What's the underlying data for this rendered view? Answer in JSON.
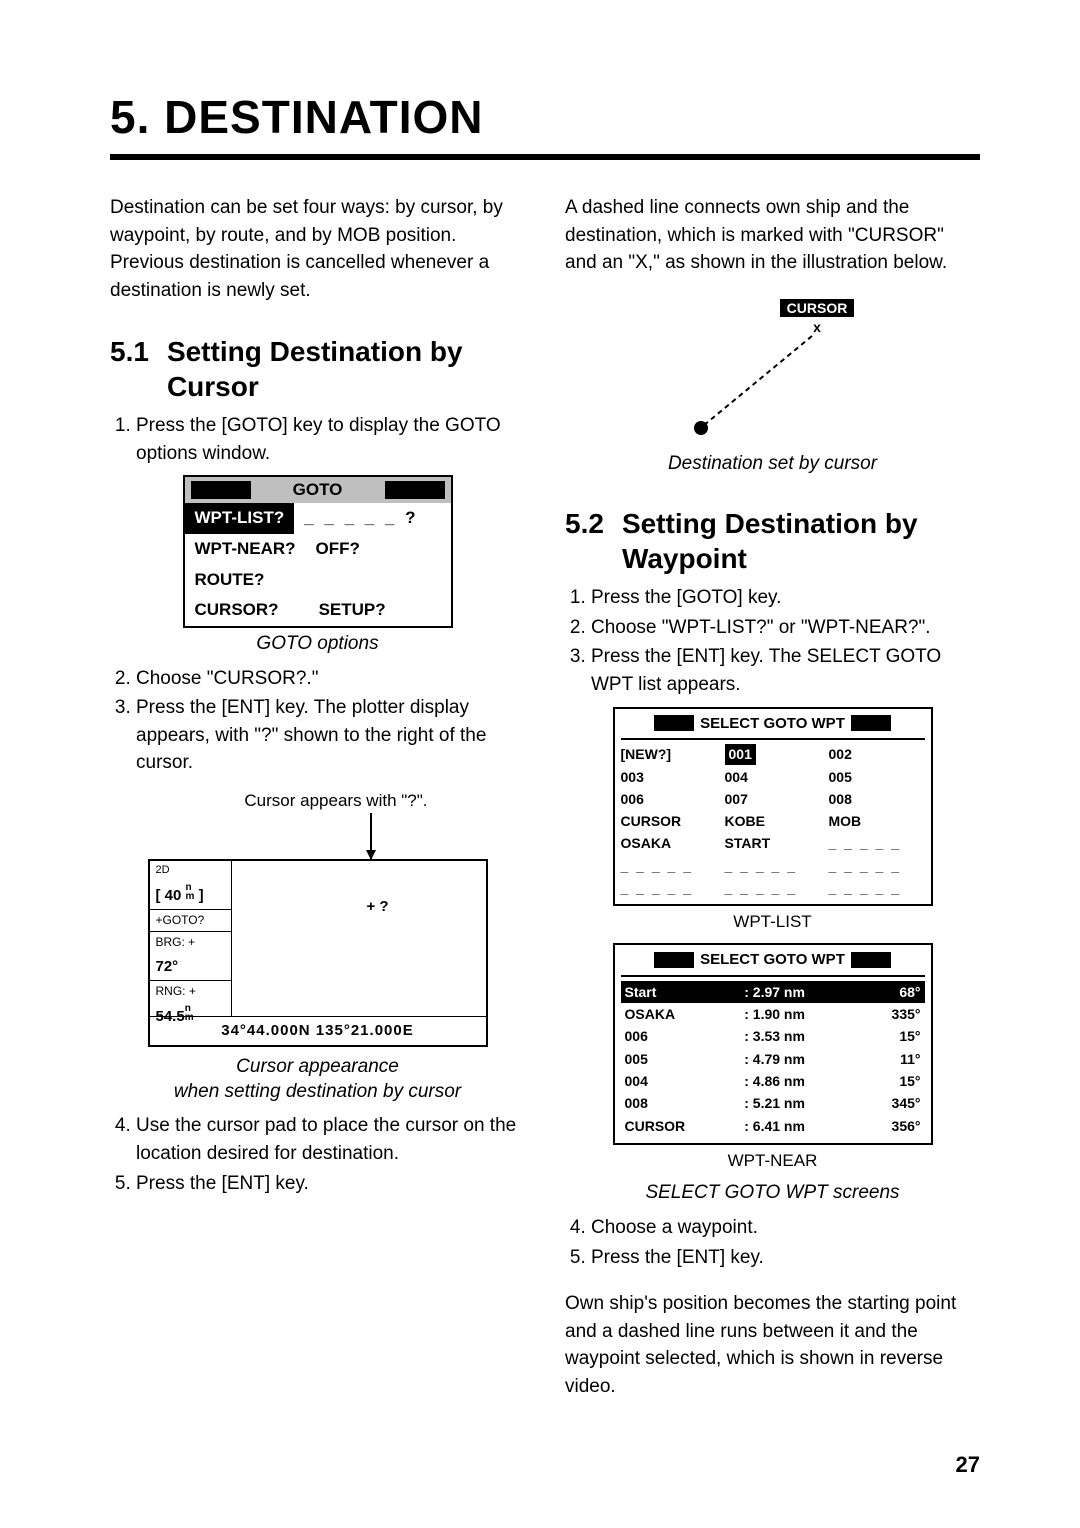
{
  "chapter": {
    "number": "5.",
    "title": "DESTINATION",
    "full": "5. DESTINATION"
  },
  "page_number": "27",
  "intro": "Destination can be set four ways: by cursor, by waypoint, by route, and by MOB position. Previous destination is cancelled whenever a destination is newly set.",
  "sec51": {
    "num": "5.1",
    "title": "Setting Destination by Cursor",
    "steps_a": [
      "Press the [GOTO] key to display the GOTO options window."
    ],
    "goto_panel": {
      "title": "GOTO",
      "rows": [
        [
          "WPT-LIST?",
          "_ _ _ _ _ ?"
        ],
        [
          "WPT-NEAR?",
          "OFF?"
        ],
        [
          "ROUTE?",
          ""
        ],
        [
          "CURSOR?",
          "SETUP?"
        ]
      ],
      "caption": "GOTO options"
    },
    "steps_b": [
      "Choose \"CURSOR?.\"",
      "Press the [ENT] key. The plotter display appears, with \"?\" shown to the right of the cursor."
    ],
    "cursor_note": "Cursor appears with \"?\".",
    "plotter": {
      "top_left": "2D",
      "scale_val": "40",
      "scale_unit_top": "n",
      "scale_unit_bot": "m",
      "goto_line": "+GOTO?",
      "brg_lbl": "BRG: +",
      "brg_val": "72°",
      "rng_lbl": "RNG: +",
      "rng_val": "54.5",
      "rng_unit_top": "n",
      "rng_unit_bot": "m",
      "cursor_sym": "+ ?",
      "coords": "34°44.000N   135°21.000E",
      "caption1": "Cursor appearance",
      "caption2": "when setting destination by cursor"
    },
    "steps_c": [
      "Use the cursor pad to place the cursor on the location desired for destination.",
      "Press the [ENT] key."
    ]
  },
  "col2top": "A dashed line connects own ship and the destination, which is marked with \"CURSOR\" and an \"X,\" as shown in the illustration below.",
  "cursor_illus": {
    "label": "CURSOR",
    "mark": "x",
    "caption": "Destination set by cursor"
  },
  "sec52": {
    "num": "5.2",
    "title": "Setting Destination by Waypoint",
    "steps_a": [
      "Press the [GOTO] key.",
      "Choose \"WPT-LIST?\" or \"WPT-NEAR?\".",
      "Press the [ENT] key. The SELECT GOTO WPT list appears."
    ],
    "wpt_list": {
      "title": "SELECT GOTO WPT",
      "cells": [
        "[NEW?]",
        "001",
        "002",
        "003",
        "004",
        "005",
        "006",
        "007",
        "008",
        "CURSOR",
        "KOBE",
        "MOB",
        "OSAKA",
        "START",
        "_ _ _ _ _",
        "_ _ _ _ _",
        "_ _ _ _ _",
        "_ _ _ _ _",
        "_ _ _ _ _",
        "_ _ _ _ _",
        "_ _ _ _ _"
      ],
      "selected_index": 1,
      "sub": "WPT-LIST"
    },
    "wpt_near": {
      "title": "SELECT GOTO WPT",
      "rows": [
        {
          "name": "Start",
          "dist": ": 2.97 nm",
          "brg": "68°",
          "sel": true
        },
        {
          "name": "OSAKA",
          "dist": ": 1.90 nm",
          "brg": "335°",
          "sel": false
        },
        {
          "name": "006",
          "dist": ": 3.53 nm",
          "brg": "15°",
          "sel": false
        },
        {
          "name": "005",
          "dist": ": 4.79 nm",
          "brg": "11°",
          "sel": false
        },
        {
          "name": "004",
          "dist": ": 4.86 nm",
          "brg": "15°",
          "sel": false
        },
        {
          "name": "008",
          "dist": ": 5.21 nm",
          "brg": "345°",
          "sel": false
        },
        {
          "name": "CURSOR",
          "dist": ": 6.41 nm",
          "brg": "356°",
          "sel": false
        }
      ],
      "sub": "WPT-NEAR",
      "caption": "SELECT GOTO WPT screens"
    },
    "steps_b": [
      "Choose a waypoint.",
      "Press the [ENT] key."
    ],
    "closing": "Own ship's position becomes the starting point and a dashed line runs between it and the waypoint selected, which is shown in reverse video."
  }
}
